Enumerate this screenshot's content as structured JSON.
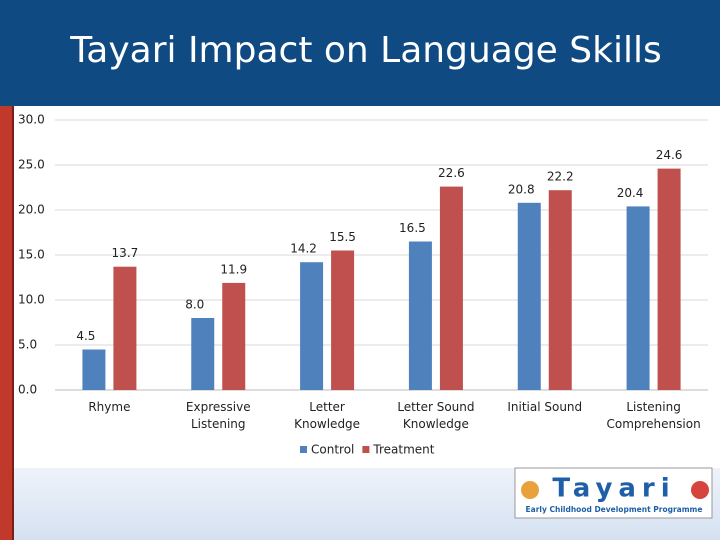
{
  "title": "Tayari Impact on Language Skills",
  "chart_data": {
    "type": "bar",
    "categories": [
      "Rhyme",
      "Expressive Listening",
      "Letter Knowledge",
      "Letter Sound Knowledge",
      "Initial Sound",
      "Listening Comprehension"
    ],
    "series": [
      {
        "name": "Control",
        "color": "#4f81bd",
        "values": [
          4.5,
          8.0,
          14.2,
          16.5,
          20.8,
          20.4
        ],
        "value_labels": [
          "4.5",
          "8.0",
          "14.2",
          "16.5",
          "20.8",
          "20.4"
        ]
      },
      {
        "name": "Treatment",
        "color": "#c0504d",
        "values": [
          13.7,
          11.9,
          15.5,
          22.6,
          22.2,
          24.6
        ],
        "value_labels": [
          "13.7",
          "11.9",
          "15.5",
          "22.6",
          "22.2",
          "24.6"
        ]
      }
    ],
    "ylim": [
      0,
      30
    ],
    "yticks": [
      {
        "value": 0,
        "label": "0.0"
      },
      {
        "value": 5,
        "label": "5.0"
      },
      {
        "value": 10,
        "label": "10.0"
      },
      {
        "value": 15,
        "label": "15.0"
      },
      {
        "value": 20,
        "label": "20.0"
      },
      {
        "value": 25,
        "label": "25.0"
      },
      {
        "value": 30,
        "label": "30.0"
      }
    ],
    "grid": true,
    "legend": "bottom"
  },
  "logo": {
    "name": "Tayari",
    "tagline": "Early Childhood Development Programme"
  }
}
